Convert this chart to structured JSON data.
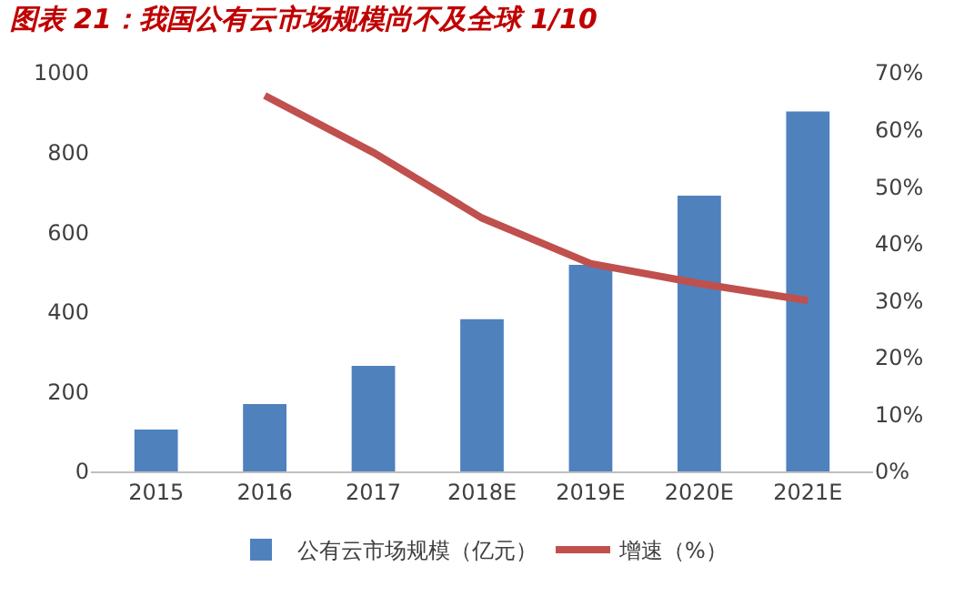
{
  "chart_data": {
    "type": "bar",
    "title": "图表 21：我国公有云市场规模尚不及全球 1/10",
    "categories": [
      "2015",
      "2016",
      "2017",
      "2018E",
      "2019E",
      "2020E",
      "2021E"
    ],
    "series": [
      {
        "name": "公有云市场规模（亿元）",
        "color": "#4f81bd",
        "values": [
          105,
          169,
          265,
          382,
          518,
          692,
          903
        ]
      },
      {
        "name": "增速（%）",
        "type": "line",
        "axis": "y2",
        "color": "#c0504d",
        "values": [
          null,
          66,
          56,
          44.5,
          36.5,
          33,
          30
        ]
      }
    ],
    "ylim": [
      0,
      1000
    ],
    "yticks": [
      0,
      200,
      400,
      600,
      800,
      1000
    ],
    "y2lim": [
      0,
      70
    ],
    "y2ticks": [
      {
        "value": 0,
        "label": "0%"
      },
      {
        "value": 10,
        "label": "10%"
      },
      {
        "value": 20,
        "label": "20%"
      },
      {
        "value": 30,
        "label": "30%"
      },
      {
        "value": 40,
        "label": "40%"
      },
      {
        "value": 50,
        "label": "50%"
      },
      {
        "value": 60,
        "label": "60%"
      },
      {
        "value": 70,
        "label": "70%"
      }
    ],
    "grid": false,
    "legend": "bottom",
    "marker": "none",
    "line_style": "solid"
  }
}
